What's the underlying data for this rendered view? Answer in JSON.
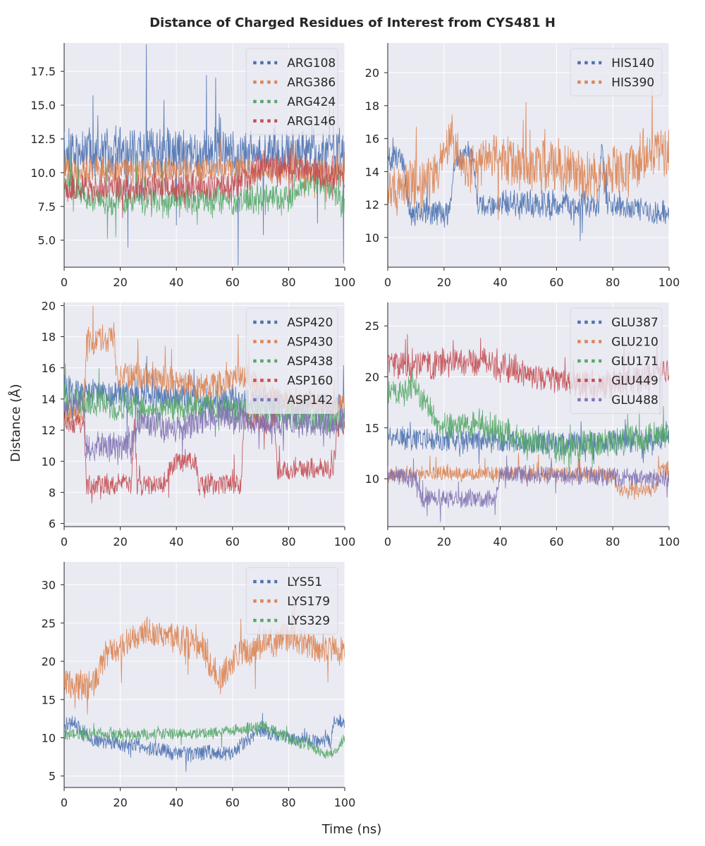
{
  "figure": {
    "title": "Distance of Charged Residues of Interest from CYS481 H",
    "xlabel": "Time (ns)",
    "ylabel": "Distance (Å)"
  },
  "colors": {
    "blue": "#4c72b0",
    "orange": "#dd8452",
    "green": "#55a868",
    "red": "#c44e52",
    "purple": "#8172b3",
    "panel_bg": "#eaeaf2",
    "grid": "#ffffff",
    "text": "#262626"
  },
  "chart_data": [
    {
      "type": "line",
      "name": "arg",
      "xlim": [
        0,
        100
      ],
      "ylim": [
        3,
        19.6
      ],
      "x_ticks": [
        0,
        20,
        40,
        60,
        80,
        100
      ],
      "y_ticks": [
        5.0,
        7.5,
        10.0,
        12.5,
        15.0,
        17.5
      ],
      "y_tick_labels": [
        "5.0",
        "7.5",
        "10.0",
        "12.5",
        "15.0",
        "17.5"
      ],
      "legend": "top-right",
      "series": [
        {
          "name": "ARG108",
          "color": "blue",
          "noise": 1.6,
          "spikes": 3.2,
          "segments": [
            [
              0,
              11.5
            ],
            [
              100,
              11.5
            ]
          ]
        },
        {
          "name": "ARG386",
          "color": "orange",
          "noise": 0.9,
          "spikes": 1.0,
          "segments": [
            [
              0,
              10.2
            ],
            [
              100,
              10.2
            ]
          ]
        },
        {
          "name": "ARG424",
          "color": "green",
          "noise": 0.9,
          "spikes": 1.2,
          "segments": [
            [
              0,
              9.5
            ],
            [
              10,
              8.0
            ],
            [
              80,
              8.0
            ],
            [
              90,
              9.5
            ],
            [
              100,
              7.8
            ]
          ]
        },
        {
          "name": "ARG146",
          "color": "red",
          "noise": 0.9,
          "spikes": 1.0,
          "segments": [
            [
              0,
              8.8
            ],
            [
              60,
              9.0
            ],
            [
              70,
              10.3
            ],
            [
              78,
              10.5
            ],
            [
              100,
              9.5
            ]
          ]
        }
      ]
    },
    {
      "type": "line",
      "name": "his",
      "xlim": [
        0,
        100
      ],
      "ylim": [
        8.2,
        21.8
      ],
      "x_ticks": [
        0,
        20,
        40,
        60,
        80,
        100
      ],
      "y_ticks": [
        10,
        12,
        14,
        16,
        18,
        20
      ],
      "y_tick_labels": [
        "10",
        "12",
        "14",
        "16",
        "18",
        "20"
      ],
      "legend": "top-right",
      "series": [
        {
          "name": "HIS140",
          "color": "blue",
          "noise": 0.7,
          "spikes": 0.8,
          "segments": [
            [
              0,
              15.0
            ],
            [
              5,
              15.0
            ],
            [
              8,
              11.5
            ],
            [
              22,
              11.5
            ],
            [
              24,
              15.0
            ],
            [
              30,
              15.0
            ],
            [
              32,
              12.0
            ],
            [
              75,
              12.0
            ],
            [
              76,
              15.5
            ],
            [
              78,
              12.0
            ],
            [
              100,
              11.5
            ]
          ]
        },
        {
          "name": "HIS390",
          "color": "orange",
          "noise": 1.4,
          "spikes": 1.8,
          "segments": [
            [
              0,
              13.0
            ],
            [
              15,
              13.5
            ],
            [
              22,
              16.0
            ],
            [
              28,
              14.0
            ],
            [
              38,
              15.0
            ],
            [
              50,
              14.0
            ],
            [
              60,
              14.5
            ],
            [
              75,
              13.5
            ],
            [
              85,
              14.0
            ],
            [
              95,
              15.5
            ],
            [
              100,
              15.0
            ]
          ]
        }
      ]
    },
    {
      "type": "line",
      "name": "asp",
      "xlim": [
        0,
        100
      ],
      "ylim": [
        5.8,
        20.2
      ],
      "x_ticks": [
        0,
        20,
        40,
        60,
        80,
        100
      ],
      "y_ticks": [
        6,
        8,
        10,
        12,
        14,
        16,
        18,
        20
      ],
      "y_tick_labels": [
        "6",
        "8",
        "10",
        "12",
        "14",
        "16",
        "18",
        "20"
      ],
      "legend": "top-right",
      "series": [
        {
          "name": "ASP420",
          "color": "blue",
          "noise": 0.8,
          "spikes": 0.9,
          "segments": [
            [
              0,
              14.5
            ],
            [
              100,
              13.5
            ]
          ]
        },
        {
          "name": "ASP430",
          "color": "orange",
          "noise": 0.8,
          "spikes": 1.0,
          "segments": [
            [
              0,
              13.0
            ],
            [
              7,
              13.0
            ],
            [
              8,
              17.8
            ],
            [
              18,
              17.8
            ],
            [
              19,
              15.5
            ],
            [
              30,
              15.5
            ],
            [
              40,
              15.0
            ],
            [
              55,
              15.0
            ],
            [
              65,
              15.5
            ],
            [
              75,
              14.0
            ],
            [
              100,
              13.5
            ]
          ]
        },
        {
          "name": "ASP438",
          "color": "green",
          "noise": 0.8,
          "spikes": 0.9,
          "segments": [
            [
              0,
              14.0
            ],
            [
              25,
              13.5
            ],
            [
              50,
              13.5
            ],
            [
              75,
              13.0
            ],
            [
              100,
              12.5
            ]
          ]
        },
        {
          "name": "ASP160",
          "color": "red",
          "noise": 0.6,
          "spikes": 0.6,
          "segments": [
            [
              0,
              12.5
            ],
            [
              7,
              12.5
            ],
            [
              8,
              8.5
            ],
            [
              24,
              8.5
            ],
            [
              25,
              13.0
            ],
            [
              26,
              8.5
            ],
            [
              35,
              8.5
            ],
            [
              40,
              10.0
            ],
            [
              47,
              10.0
            ],
            [
              48,
              8.5
            ],
            [
              63,
              8.5
            ],
            [
              64,
              12.5
            ],
            [
              75,
              12.5
            ],
            [
              76,
              9.5
            ],
            [
              96,
              9.5
            ],
            [
              97,
              12.0
            ],
            [
              100,
              12.0
            ]
          ]
        },
        {
          "name": "ASP142",
          "color": "purple",
          "noise": 0.8,
          "spikes": 0.8,
          "segments": [
            [
              0,
              13.5
            ],
            [
              7,
              13.5
            ],
            [
              8,
              11.0
            ],
            [
              24,
              11.0
            ],
            [
              26,
              12.5
            ],
            [
              40,
              12.0
            ],
            [
              55,
              13.0
            ],
            [
              75,
              12.5
            ],
            [
              100,
              12.5
            ]
          ]
        }
      ]
    },
    {
      "type": "line",
      "name": "glu",
      "xlim": [
        0,
        100
      ],
      "ylim": [
        5.3,
        27.3
      ],
      "x_ticks": [
        0,
        20,
        40,
        60,
        80,
        100
      ],
      "y_ticks": [
        10,
        15,
        20,
        25
      ],
      "y_tick_labels": [
        "10",
        "15",
        "20",
        "25"
      ],
      "legend": "top-right",
      "series": [
        {
          "name": "GLU387",
          "color": "blue",
          "noise": 1.0,
          "spikes": 1.0,
          "segments": [
            [
              0,
              14.0
            ],
            [
              60,
              13.5
            ],
            [
              100,
              14.0
            ]
          ]
        },
        {
          "name": "GLU210",
          "color": "orange",
          "noise": 0.7,
          "spikes": 0.7,
          "segments": [
            [
              0,
              10.5
            ],
            [
              80,
              10.5
            ],
            [
              82,
              9.0
            ],
            [
              95,
              9.0
            ],
            [
              97,
              11.0
            ],
            [
              100,
              11.0
            ]
          ]
        },
        {
          "name": "GLU171",
          "color": "green",
          "noise": 1.3,
          "spikes": 1.3,
          "segments": [
            [
              0,
              19.0
            ],
            [
              10,
              18.5
            ],
            [
              20,
              15.0
            ],
            [
              35,
              15.5
            ],
            [
              45,
              14.0
            ],
            [
              60,
              13.0
            ],
            [
              80,
              13.5
            ],
            [
              100,
              14.5
            ]
          ]
        },
        {
          "name": "GLU449",
          "color": "red",
          "noise": 1.3,
          "spikes": 1.3,
          "segments": [
            [
              0,
              21.0
            ],
            [
              35,
              21.5
            ],
            [
              55,
              20.0
            ],
            [
              75,
              19.0
            ],
            [
              100,
              20.5
            ]
          ]
        },
        {
          "name": "GLU488",
          "color": "purple",
          "noise": 0.8,
          "spikes": 0.8,
          "segments": [
            [
              0,
              10.5
            ],
            [
              10,
              10.0
            ],
            [
              12,
              8.0
            ],
            [
              38,
              8.0
            ],
            [
              40,
              10.5
            ],
            [
              100,
              10.0
            ]
          ]
        }
      ]
    },
    {
      "type": "line",
      "name": "lys",
      "xlim": [
        0,
        100
      ],
      "ylim": [
        3.5,
        33.0
      ],
      "x_ticks": [
        0,
        20,
        40,
        60,
        80,
        100
      ],
      "y_ticks": [
        5,
        10,
        15,
        20,
        25,
        30
      ],
      "y_tick_labels": [
        "5",
        "10",
        "15",
        "20",
        "25",
        "30"
      ],
      "legend": "top-right",
      "series": [
        {
          "name": "LYS51",
          "color": "blue",
          "noise": 0.9,
          "spikes": 0.9,
          "segments": [
            [
              0,
              12.0
            ],
            [
              5,
              11.5
            ],
            [
              10,
              9.5
            ],
            [
              25,
              9.0
            ],
            [
              40,
              8.0
            ],
            [
              60,
              8.0
            ],
            [
              70,
              11.0
            ],
            [
              80,
              10.0
            ],
            [
              90,
              9.5
            ],
            [
              95,
              9.5
            ],
            [
              96,
              12.0
            ],
            [
              100,
              12.0
            ]
          ]
        },
        {
          "name": "LYS179",
          "color": "orange",
          "noise": 1.8,
          "spikes": 2.2,
          "segments": [
            [
              0,
              17.0
            ],
            [
              10,
              16.5
            ],
            [
              15,
              21.0
            ],
            [
              30,
              24.0
            ],
            [
              40,
              23.0
            ],
            [
              50,
              21.5
            ],
            [
              55,
              17.5
            ],
            [
              60,
              20.0
            ],
            [
              70,
              22.0
            ],
            [
              80,
              23.0
            ],
            [
              90,
              22.0
            ],
            [
              100,
              21.0
            ]
          ]
        },
        {
          "name": "LYS329",
          "color": "green",
          "noise": 0.7,
          "spikes": 0.8,
          "segments": [
            [
              0,
              10.5
            ],
            [
              30,
              10.5
            ],
            [
              50,
              10.5
            ],
            [
              70,
              11.5
            ],
            [
              80,
              10.0
            ],
            [
              88,
              9.0
            ],
            [
              92,
              8.0
            ],
            [
              96,
              8.0
            ],
            [
              100,
              10.0
            ]
          ]
        }
      ]
    }
  ]
}
